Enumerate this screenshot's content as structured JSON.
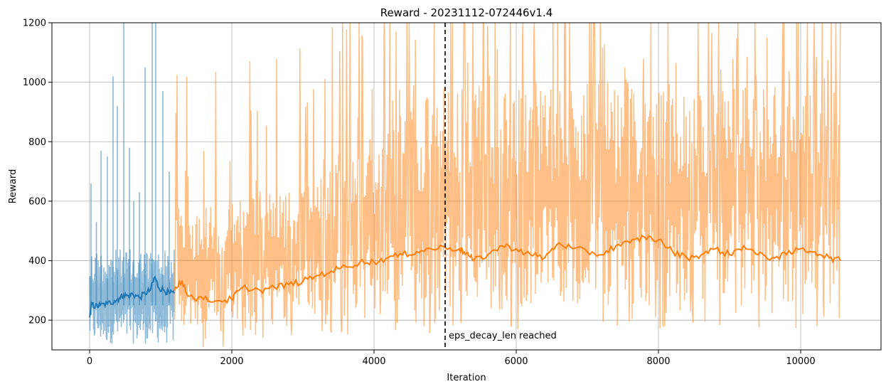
{
  "chart_data": {
    "type": "line",
    "title": "Reward - 20231112-072446v1.4",
    "xlabel": "Iteration",
    "ylabel": "Reward",
    "xlim": [
      -530,
      11130
    ],
    "ylim": [
      100,
      1200
    ],
    "xticks": [
      0,
      2000,
      4000,
      6000,
      8000,
      10000
    ],
    "yticks": [
      200,
      400,
      600,
      800,
      1000,
      1200
    ],
    "grid": true,
    "series": [
      {
        "color": "#1f77b4",
        "raw_alpha": 0.5,
        "x_range": [
          0,
          1190
        ],
        "raw_band": [
          120,
          440
        ],
        "raw_spikes": [
          [
            20,
            660
          ],
          [
            95,
            530
          ],
          [
            160,
            770
          ],
          [
            250,
            750
          ],
          [
            330,
            1020
          ],
          [
            390,
            920
          ],
          [
            480,
            1200
          ],
          [
            560,
            780
          ],
          [
            620,
            600
          ],
          [
            700,
            630
          ],
          [
            780,
            1050
          ],
          [
            880,
            1200
          ],
          [
            930,
            1200
          ],
          [
            1030,
            970
          ],
          [
            1120,
            700
          ]
        ],
        "moving_average": [
          [
            0,
            210
          ],
          [
            30,
            255
          ],
          [
            80,
            245
          ],
          [
            150,
            250
          ],
          [
            250,
            255
          ],
          [
            350,
            265
          ],
          [
            420,
            275
          ],
          [
            480,
            285
          ],
          [
            550,
            280
          ],
          [
            600,
            290
          ],
          [
            700,
            275
          ],
          [
            780,
            290
          ],
          [
            850,
            300
          ],
          [
            920,
            345
          ],
          [
            970,
            310
          ],
          [
            1050,
            300
          ],
          [
            1120,
            290
          ],
          [
            1190,
            290
          ]
        ]
      },
      {
        "color": "#ff7f0e",
        "raw_alpha": 0.5,
        "x_range": [
          1190,
          10560
        ],
        "raw_band": [
          [
            1190,
            180,
            560
          ],
          [
            3000,
            200,
            650
          ],
          [
            5000,
            240,
            1000
          ],
          [
            10560,
            250,
            1000
          ]
        ],
        "moving_average": [
          [
            1190,
            300
          ],
          [
            1300,
            330
          ],
          [
            1400,
            280
          ],
          [
            1600,
            270
          ],
          [
            1800,
            265
          ],
          [
            2000,
            270
          ],
          [
            2100,
            300
          ],
          [
            2200,
            310
          ],
          [
            2400,
            300
          ],
          [
            2600,
            310
          ],
          [
            2800,
            320
          ],
          [
            3000,
            330
          ],
          [
            3200,
            350
          ],
          [
            3400,
            365
          ],
          [
            3600,
            380
          ],
          [
            3800,
            395
          ],
          [
            4000,
            395
          ],
          [
            4200,
            410
          ],
          [
            4400,
            420
          ],
          [
            4600,
            430
          ],
          [
            4800,
            440
          ],
          [
            5000,
            445
          ],
          [
            5200,
            440
          ],
          [
            5300,
            425
          ],
          [
            5400,
            400
          ],
          [
            5600,
            420
          ],
          [
            5800,
            450
          ],
          [
            6000,
            440
          ],
          [
            6200,
            420
          ],
          [
            6400,
            410
          ],
          [
            6600,
            460
          ],
          [
            6800,
            440
          ],
          [
            7000,
            430
          ],
          [
            7200,
            420
          ],
          [
            7400,
            450
          ],
          [
            7600,
            460
          ],
          [
            7800,
            480
          ],
          [
            8000,
            470
          ],
          [
            8200,
            430
          ],
          [
            8400,
            410
          ],
          [
            8600,
            420
          ],
          [
            8800,
            440
          ],
          [
            9000,
            420
          ],
          [
            9200,
            450
          ],
          [
            9400,
            420
          ],
          [
            9600,
            410
          ],
          [
            9800,
            420
          ],
          [
            10000,
            440
          ],
          [
            10200,
            430
          ],
          [
            10400,
            410
          ],
          [
            10560,
            400
          ]
        ]
      }
    ],
    "vline": {
      "x": 5000,
      "style": "dashed",
      "color": "#000000"
    },
    "annotation": {
      "text": "eps_decay_len reached",
      "x": 5000,
      "y": 150
    }
  }
}
